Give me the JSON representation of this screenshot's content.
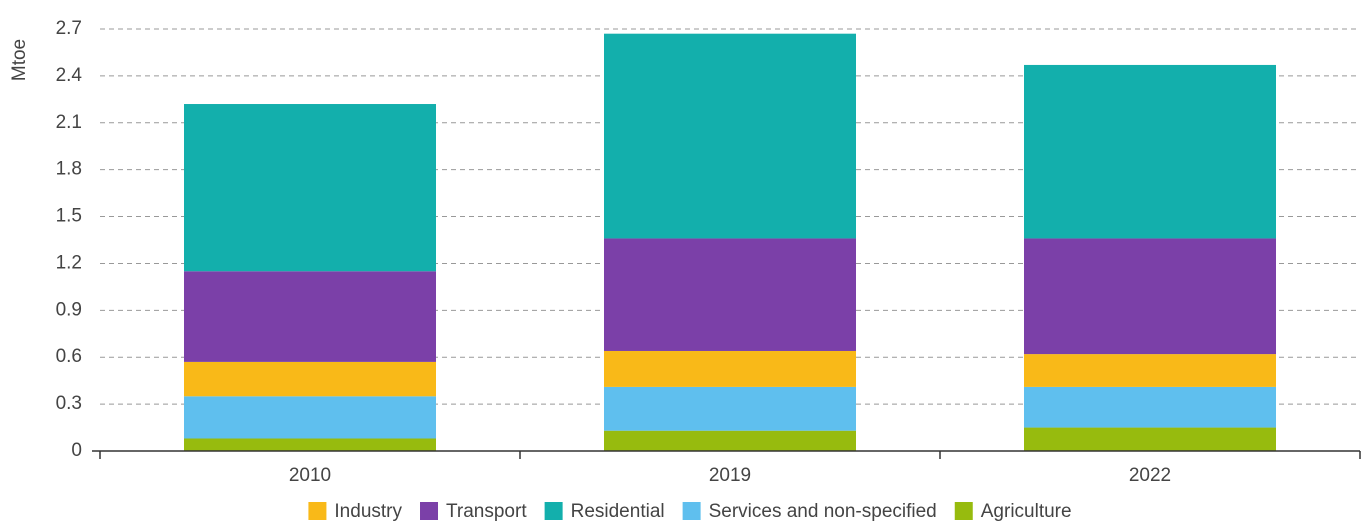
{
  "chart_data": {
    "type": "stacked_bar",
    "y_label": "Mtoe",
    "categories": [
      "2010",
      "2019",
      "2022"
    ],
    "series": [
      {
        "name": "Industry",
        "color": "#f9b918",
        "values": [
          0.22,
          0.23,
          0.21
        ]
      },
      {
        "name": "Transport",
        "color": "#7b40a8",
        "values": [
          0.58,
          0.72,
          0.74
        ]
      },
      {
        "name": "Residential",
        "color": "#13afac",
        "values": [
          1.07,
          1.31,
          1.11
        ]
      },
      {
        "name": "Services and non-specified",
        "color": "#5fbfee",
        "values": [
          0.27,
          0.28,
          0.26
        ]
      },
      {
        "name": "Agriculture",
        "color": "#97bb0e",
        "values": [
          0.08,
          0.13,
          0.15
        ]
      }
    ],
    "ylim": [
      0,
      2.7
    ],
    "yticks": [
      0,
      0.3,
      0.6,
      0.9,
      1.2,
      1.5,
      1.8,
      2.1,
      2.4,
      2.7
    ],
    "grid": true,
    "legend": "bottom"
  }
}
